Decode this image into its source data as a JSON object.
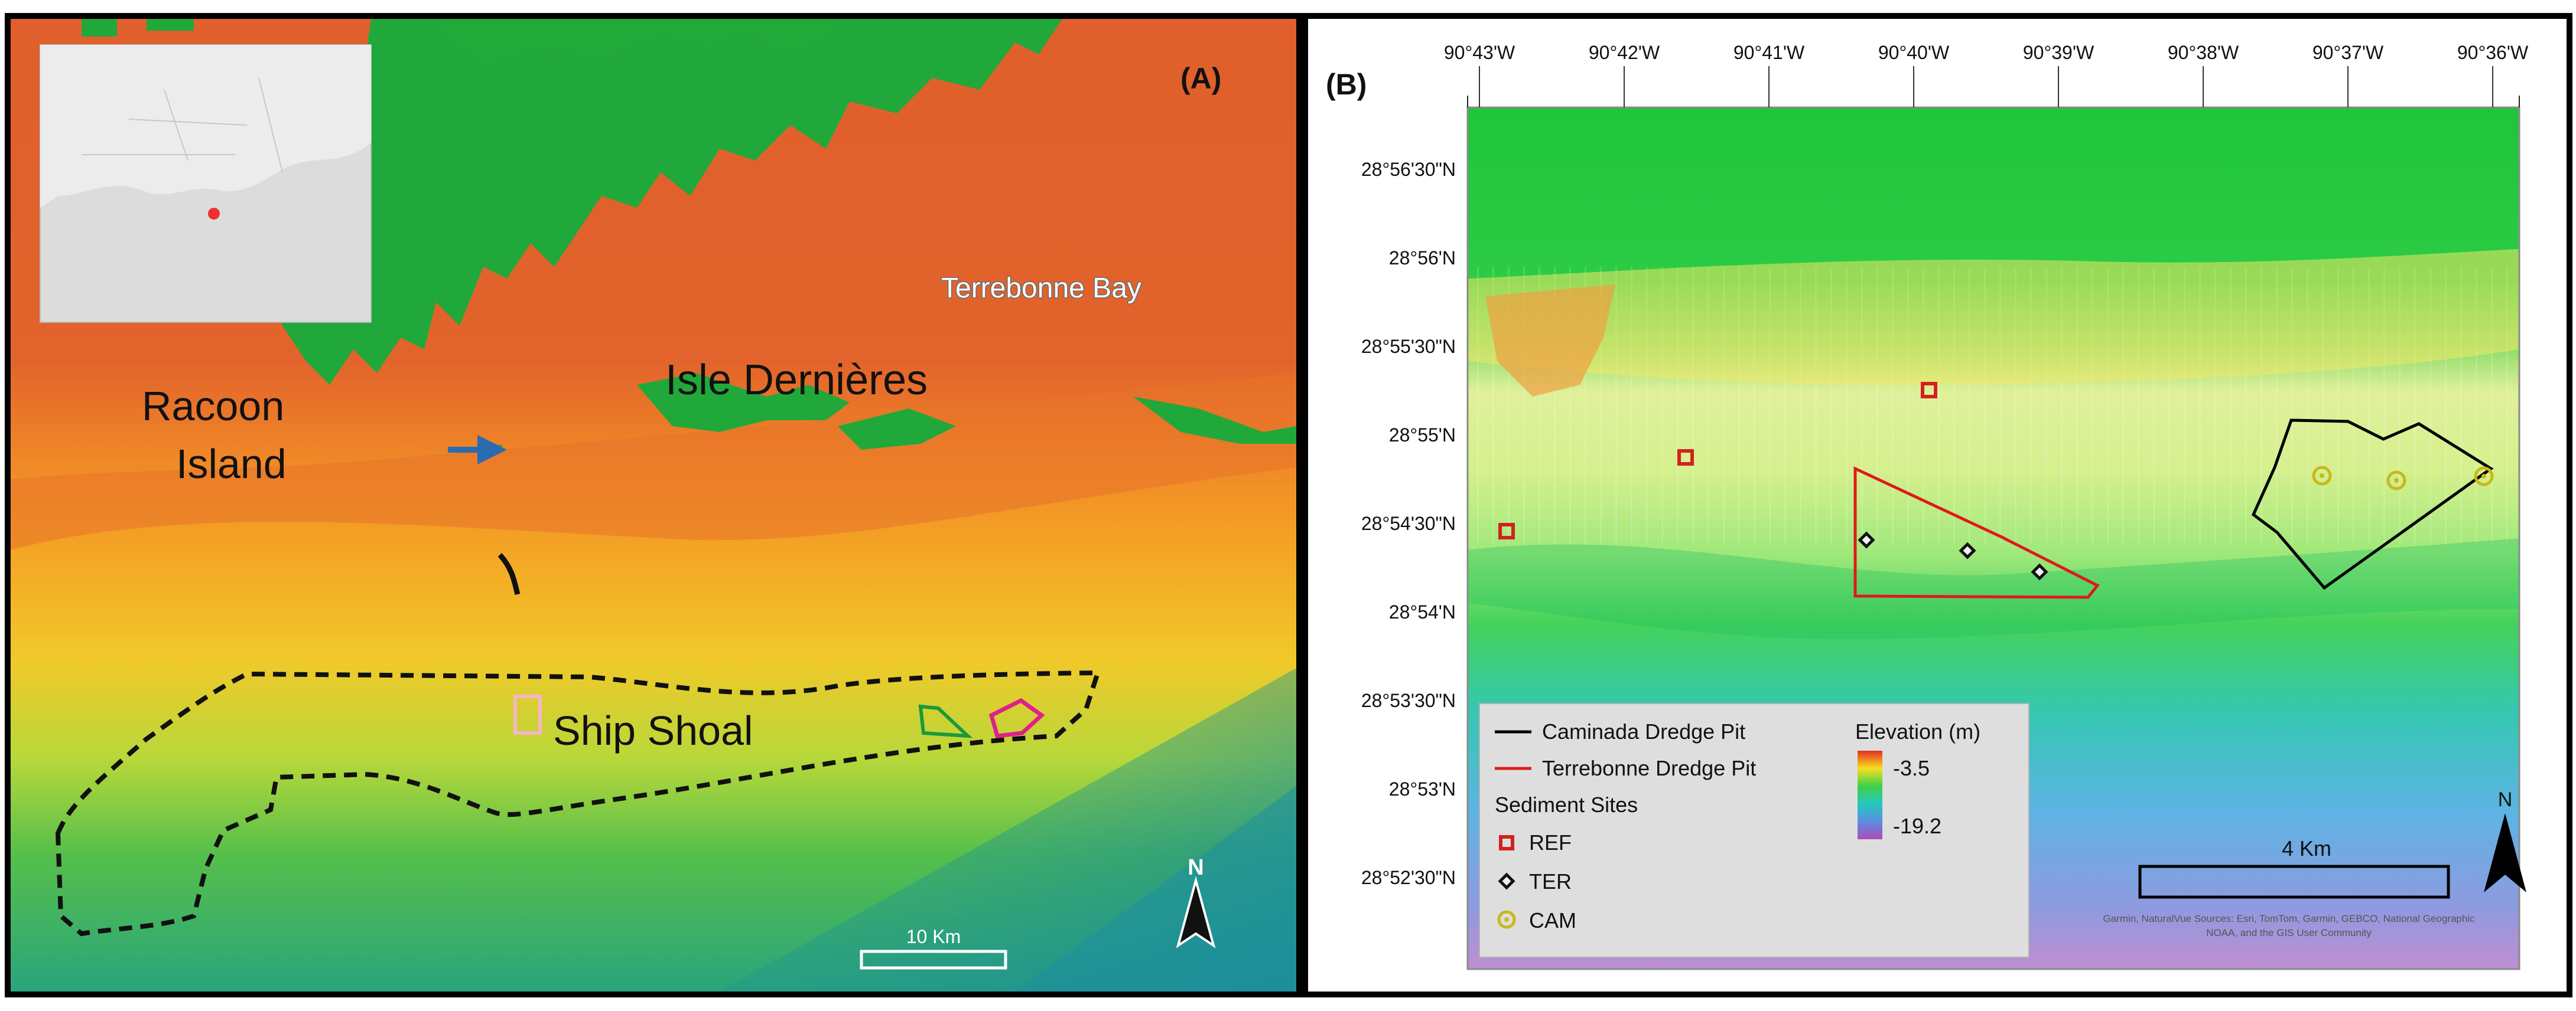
{
  "panel_a": {
    "panel_label": "(A)",
    "bay_label": "Terrebonne Bay",
    "island_label": "Isle Dernières",
    "raccoon_label_line1": "Racoon",
    "raccoon_label_line2": "Island",
    "shoal_label": "Ship Shoal",
    "scale_label": "10 Km",
    "north_label": "N",
    "inset_description_icon": "locator-inset-map",
    "colors": {
      "land": "#1faa36",
      "shallow": "#e0642a",
      "mid": "#f5a623",
      "yellow": "#f4e21b",
      "green": "#5fc24c",
      "deep": "#1f9c8c",
      "arrow": "#2a6cb0"
    }
  },
  "panel_b": {
    "panel_label": "(B)",
    "longitude_ticks": [
      "90°43'W",
      "90°42'W",
      "90°41'W",
      "90°40'W",
      "90°39'W",
      "90°38'W",
      "90°37'W",
      "90°36'W"
    ],
    "latitude_ticks": [
      "28°56'30\"N",
      "28°56'N",
      "28°55'30\"N",
      "28°55'N",
      "28°54'30\"N",
      "28°54'N",
      "28°53'30\"N",
      "28°53'N",
      "28°52'30\"N"
    ],
    "legend": {
      "caminada": "Caminada Dredge Pit",
      "terrebonne": "Terrebonne Dredge Pit",
      "sediment_title": "Sediment Sites",
      "ref": "REF",
      "ter": "TER",
      "cam": "CAM",
      "elevation_title": "Elevation (m)",
      "elev_max": "-3.5",
      "elev_min": "-19.2"
    },
    "scale_label": "4 Km",
    "north_label": "N",
    "attribution_line1": "Garmin, NaturalVue Sources: Esri, TomTom, Garmin, GEBCO, National Geographic",
    "attribution_line2": "NOAA, and the GIS User Community",
    "colors": {
      "ref": "#d42020",
      "ter": "#111111",
      "cam": "#c9b81a",
      "caminada_outline": "#000000",
      "terrebonne_outline": "#e01a1a"
    }
  }
}
